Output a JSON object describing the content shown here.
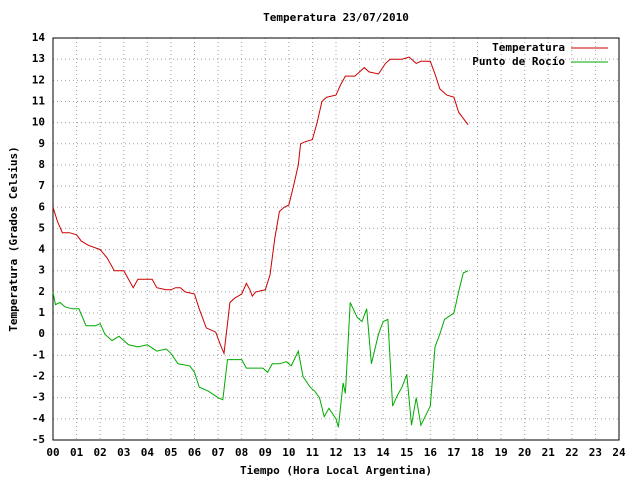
{
  "chart_data": {
    "type": "line",
    "title": "Temperatura 23/07/2010",
    "x_label": "Tiempo (Hora Local Argentina)",
    "y_label": "Temperatura (Grados Celsius)",
    "xlim": [
      0,
      24
    ],
    "ylim": [
      -5,
      14
    ],
    "xticks": [
      {
        "value": 0,
        "label": "00"
      },
      {
        "value": 1,
        "label": "01"
      },
      {
        "value": 2,
        "label": "02"
      },
      {
        "value": 3,
        "label": "03"
      },
      {
        "value": 4,
        "label": "04"
      },
      {
        "value": 5,
        "label": "05"
      },
      {
        "value": 6,
        "label": "06"
      },
      {
        "value": 7,
        "label": "07"
      },
      {
        "value": 8,
        "label": "08"
      },
      {
        "value": 9,
        "label": "09"
      },
      10,
      11,
      12,
      13,
      14,
      15,
      16,
      17,
      18,
      19,
      20,
      21,
      22,
      23,
      24
    ],
    "yticks": [
      -5,
      -4,
      -3,
      -2,
      -1,
      0,
      1,
      2,
      3,
      4,
      5,
      6,
      7,
      8,
      9,
      10,
      11,
      12,
      13,
      14
    ],
    "grid": true,
    "legend": "top-right",
    "series": [
      {
        "name": "Temperatura",
        "color": "#cc0000",
        "x": [
          0.0,
          0.2,
          0.4,
          0.7,
          1.0,
          1.2,
          1.5,
          2.0,
          2.3,
          2.6,
          3.0,
          3.2,
          3.4,
          3.6,
          4.2,
          4.4,
          4.8,
          5.0,
          5.2,
          5.4,
          5.6,
          6.0,
          6.2,
          6.5,
          6.9,
          7.1,
          7.25,
          7.4,
          7.5,
          7.7,
          8.0,
          8.2,
          8.35,
          8.45,
          8.6,
          9.0,
          9.2,
          9.4,
          9.6,
          9.8,
          10.0,
          10.2,
          10.4,
          10.5,
          10.7,
          11.0,
          11.2,
          11.4,
          11.6,
          12.0,
          12.2,
          12.4,
          12.8,
          13.0,
          13.2,
          13.4,
          13.8,
          14.1,
          14.3,
          14.5,
          14.8,
          15.1,
          15.4,
          15.6,
          16.0,
          16.2,
          16.4,
          16.7,
          17.0,
          17.2,
          17.4,
          17.6
        ],
        "values": [
          6.0,
          5.3,
          4.8,
          4.8,
          4.7,
          4.4,
          4.2,
          4.0,
          3.6,
          3.0,
          3.0,
          2.6,
          2.2,
          2.6,
          2.6,
          2.2,
          2.1,
          2.1,
          2.2,
          2.2,
          2.0,
          1.9,
          1.2,
          0.3,
          0.1,
          -0.5,
          -0.9,
          0.5,
          1.5,
          1.7,
          1.9,
          2.4,
          2.1,
          1.8,
          2.0,
          2.1,
          2.8,
          4.5,
          5.8,
          6.0,
          6.1,
          7.0,
          8.0,
          9.0,
          9.1,
          9.2,
          10.0,
          11.0,
          11.2,
          11.3,
          11.8,
          12.2,
          12.2,
          12.4,
          12.6,
          12.4,
          12.3,
          12.8,
          13.0,
          13.0,
          13.0,
          13.1,
          12.8,
          12.9,
          12.9,
          12.3,
          11.6,
          11.3,
          11.2,
          10.5,
          10.2,
          9.9
        ]
      },
      {
        "name": "Punto de Rocío",
        "color": "#00aa00",
        "x": [
          0.0,
          0.1,
          0.3,
          0.5,
          0.8,
          1.1,
          1.4,
          1.8,
          2.0,
          2.2,
          2.5,
          2.8,
          3.2,
          3.6,
          4.0,
          4.4,
          4.8,
          5.0,
          5.3,
          5.8,
          6.0,
          6.2,
          6.6,
          7.0,
          7.2,
          7.4,
          7.8,
          8.0,
          8.2,
          8.6,
          8.9,
          9.1,
          9.3,
          9.6,
          9.9,
          10.1,
          10.4,
          10.6,
          10.9,
          11.1,
          11.3,
          11.5,
          11.7,
          12.0,
          12.1,
          12.3,
          12.4,
          12.6,
          12.9,
          13.1,
          13.3,
          13.5,
          13.8,
          14.0,
          14.2,
          14.4,
          14.6,
          14.8,
          15.0,
          15.2,
          15.4,
          15.6,
          16.0,
          16.2,
          16.4,
          16.6,
          17.0,
          17.2,
          17.4,
          17.6
        ],
        "values": [
          2.0,
          1.4,
          1.5,
          1.3,
          1.2,
          1.2,
          0.4,
          0.4,
          0.5,
          0.0,
          -0.3,
          -0.1,
          -0.5,
          -0.6,
          -0.5,
          -0.8,
          -0.7,
          -0.9,
          -1.4,
          -1.5,
          -1.8,
          -2.5,
          -2.7,
          -3.0,
          -3.1,
          -1.2,
          -1.2,
          -1.2,
          -1.6,
          -1.6,
          -1.6,
          -1.8,
          -1.4,
          -1.4,
          -1.3,
          -1.5,
          -0.8,
          -2.0,
          -2.5,
          -2.7,
          -3.0,
          -3.9,
          -3.5,
          -4.0,
          -4.4,
          -2.3,
          -2.8,
          1.5,
          0.8,
          0.6,
          1.2,
          -1.4,
          0.0,
          0.6,
          0.7,
          -3.4,
          -2.9,
          -2.5,
          -1.9,
          -4.3,
          -3.0,
          -4.3,
          -3.4,
          -0.6,
          0.0,
          0.7,
          1.0,
          2.0,
          2.9,
          3.0
        ]
      }
    ]
  }
}
